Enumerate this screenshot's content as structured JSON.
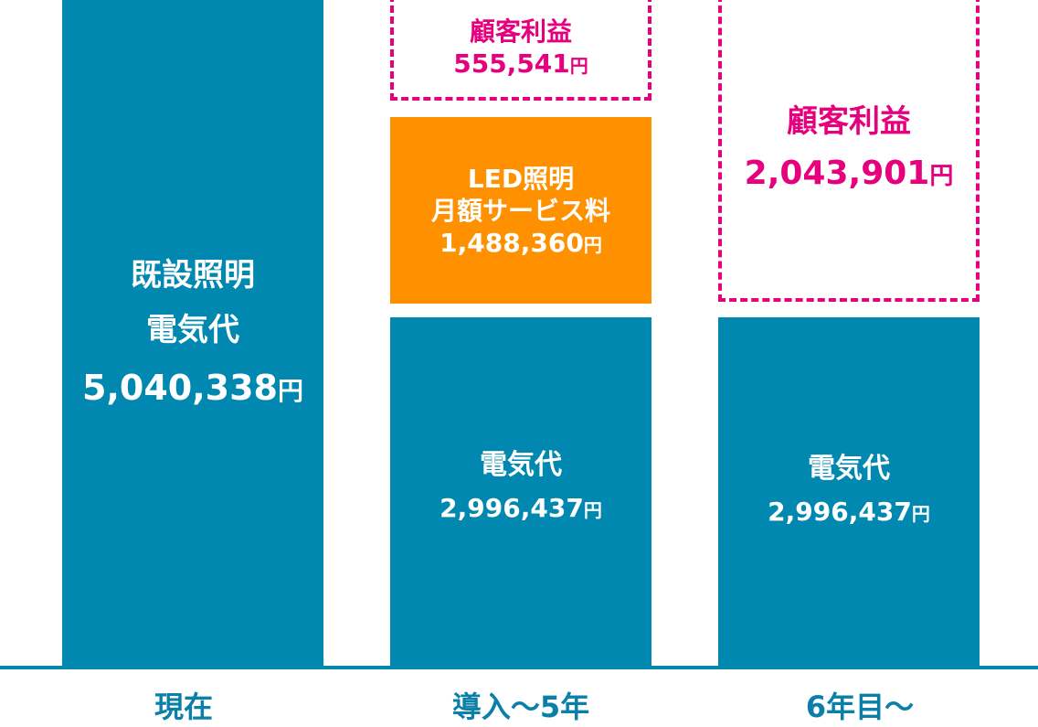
{
  "chart_data": {
    "type": "bar",
    "stacked": true,
    "categories": [
      "現在",
      "導入～5年",
      "6年目～"
    ],
    "currency_unit": "円",
    "colors": {
      "electricity": "#0088b0",
      "led_service": "#ff9100",
      "customer_profit": "#e6007e",
      "axis_text": "#0a7fa8"
    },
    "columns": [
      {
        "category": "現在",
        "segments": [
          {
            "name": "既設照明電気代",
            "lines": [
              "既設照明",
              "電気代"
            ],
            "value": 5040338,
            "value_text": "5,040,338"
          }
        ]
      },
      {
        "category": "導入～5年",
        "segments": [
          {
            "name": "電気代",
            "lines": [
              "電気代"
            ],
            "value": 2996437,
            "value_text": "2,996,437"
          },
          {
            "name": "LED照明月額サービス料",
            "lines": [
              "LED照明",
              "月額サービス料"
            ],
            "value": 1488360,
            "value_text": "1,488,360"
          },
          {
            "name": "顧客利益",
            "lines": [
              "顧客利益"
            ],
            "value": 555541,
            "value_text": "555,541"
          }
        ]
      },
      {
        "category": "6年目～",
        "segments": [
          {
            "name": "電気代",
            "lines": [
              "電気代"
            ],
            "value": 2996437,
            "value_text": "2,996,437"
          },
          {
            "name": "顧客利益",
            "lines": [
              "顧客利益"
            ],
            "value": 2043901,
            "value_text": "2,043,901"
          }
        ]
      }
    ]
  }
}
